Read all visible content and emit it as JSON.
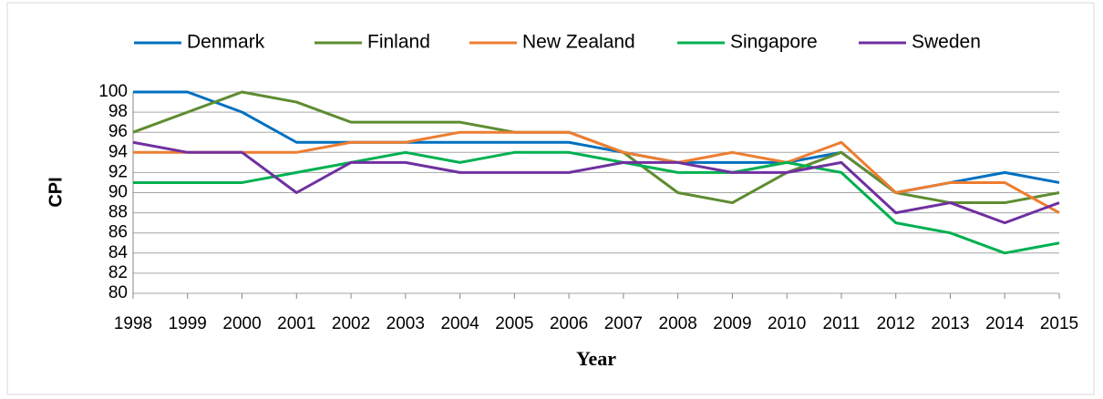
{
  "chart_data": {
    "type": "line",
    "x_label": "Year",
    "y_label": "CPI",
    "x": [
      1998,
      1999,
      2000,
      2001,
      2002,
      2003,
      2004,
      2005,
      2006,
      2007,
      2008,
      2009,
      2010,
      2011,
      2012,
      2013,
      2014,
      2015
    ],
    "xlim": [
      1998,
      2015
    ],
    "ylim": [
      80,
      100
    ],
    "yticks": [
      80,
      82,
      84,
      86,
      88,
      90,
      92,
      94,
      96,
      98,
      100
    ],
    "grid": true,
    "legend": "top",
    "series": [
      {
        "name": "Denmark",
        "color": "#0070c0",
        "values": [
          100,
          100,
          98,
          95,
          95,
          95,
          95,
          95,
          95,
          94,
          93,
          93,
          93,
          94,
          90,
          91,
          92,
          91
        ]
      },
      {
        "name": "Finland",
        "color": "#5e8c31",
        "values": [
          96,
          98,
          100,
          99,
          97,
          97,
          97,
          96,
          96,
          94,
          90,
          89,
          92,
          94,
          90,
          89,
          89,
          90
        ]
      },
      {
        "name": "New Zealand",
        "color": "#ed7d31",
        "values": [
          94,
          94,
          94,
          94,
          95,
          95,
          96,
          96,
          96,
          94,
          93,
          94,
          93,
          95,
          90,
          91,
          91,
          88
        ]
      },
      {
        "name": "Singapore",
        "color": "#00b050",
        "values": [
          91,
          91,
          91,
          92,
          93,
          94,
          93,
          94,
          94,
          93,
          92,
          92,
          93,
          92,
          87,
          86,
          84,
          85
        ]
      },
      {
        "name": "Sweden",
        "color": "#7030a0",
        "values": [
          95,
          94,
          94,
          90,
          93,
          93,
          92,
          92,
          92,
          93,
          93,
          92,
          92,
          93,
          88,
          89,
          87,
          89
        ]
      }
    ]
  }
}
